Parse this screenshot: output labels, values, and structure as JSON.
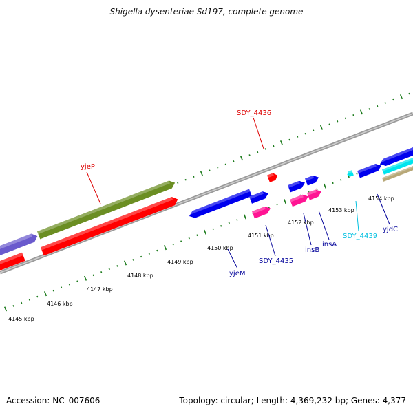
{
  "title": "Shigella dysenteriae Sd197, complete genome",
  "footer": {
    "accession": "Accession: NC_007606",
    "summary": "Topology: circular; Length: 4,369,232 bp; Genes: 4,377"
  },
  "colors": {
    "backbone": "#8a8a8a",
    "tick_mark": "#1a7a1a",
    "forward_cds": "#0000ee",
    "reverse_cds": "#ff0000",
    "olive_cds": "#6b8e23",
    "lavender_cds": "#6a5acd",
    "pink_cds": "#ff1493",
    "cyan_cds": "#00e5ee",
    "tan_cds": "#b8a878",
    "label_red": "#dd0000",
    "label_blue": "#000099",
    "label_cyan": "#00c0e0"
  },
  "kbp_axis": [
    {
      "label": "4145 kbp"
    },
    {
      "label": "4146 kbp"
    },
    {
      "label": "4147 kbp"
    },
    {
      "label": "4148 kbp"
    },
    {
      "label": "4149 kbp"
    },
    {
      "label": "4150 kbp"
    },
    {
      "label": "4151 kbp"
    },
    {
      "label": "4152 kbp"
    },
    {
      "label": "4153 kbp"
    },
    {
      "label": "4154 kbp"
    }
  ],
  "gene_labels": [
    {
      "name": "yjeP",
      "color_key": "label_red"
    },
    {
      "name": "SDY_4436",
      "color_key": "label_red"
    },
    {
      "name": "yjeM",
      "color_key": "label_blue"
    },
    {
      "name": "SDY_4435",
      "color_key": "label_blue"
    },
    {
      "name": "insB",
      "color_key": "label_blue"
    },
    {
      "name": "insA",
      "color_key": "label_blue"
    },
    {
      "name": "SDY_4439",
      "color_key": "label_cyan"
    },
    {
      "name": "yjdC",
      "color_key": "label_blue"
    }
  ]
}
